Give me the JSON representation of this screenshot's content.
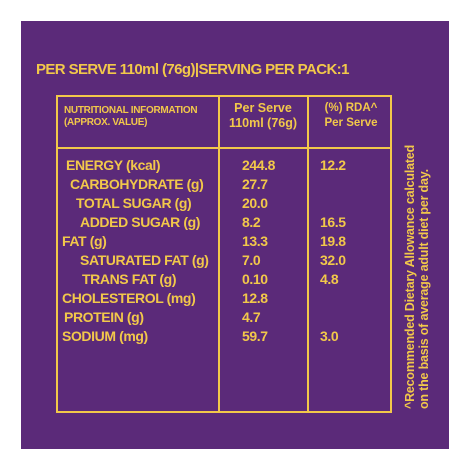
{
  "header": "PER SERVE 110ml (76g)|SERVING PER PACK:1",
  "table": {
    "col1_header": [
      "NUTRITIONAL INFORMATION",
      "(APPROX. VALUE)"
    ],
    "col2_header": [
      "Per Serve",
      "110ml (76g)"
    ],
    "col3_header": [
      "(%) RDA^",
      "Per Serve"
    ],
    "rows": [
      {
        "name": "ENERGY (kcal)",
        "per_serve": "244.8",
        "rda": "12.2"
      },
      {
        "name": "CARBOHYDRATE (g)",
        "per_serve": "27.7",
        "rda": ""
      },
      {
        "name": "TOTAL SUGAR (g)",
        "per_serve": "20.0",
        "rda": ""
      },
      {
        "name": "ADDED SUGAR (g)",
        "per_serve": "8.2",
        "rda": "16.5"
      },
      {
        "name": "FAT (g)",
        "per_serve": "13.3",
        "rda": "19.8"
      },
      {
        "name": "SATURATED FAT (g)",
        "per_serve": "7.0",
        "rda": "32.0"
      },
      {
        "name": "TRANS FAT (g)",
        "per_serve": "0.10",
        "rda": "4.8"
      },
      {
        "name": "CHOLESTEROL (mg)",
        "per_serve": "12.8",
        "rda": ""
      },
      {
        "name": "PROTEIN (g)",
        "per_serve": "4.7",
        "rda": ""
      },
      {
        "name": "SODIUM (mg)",
        "per_serve": "59.7",
        "rda": "3.0"
      }
    ]
  },
  "footnote": [
    "^Recommended Dietary Allowance calculated",
    "on the basis of average adult diet per day."
  ],
  "colors": {
    "background": "#5b2a79",
    "text": "#f2c84a"
  }
}
